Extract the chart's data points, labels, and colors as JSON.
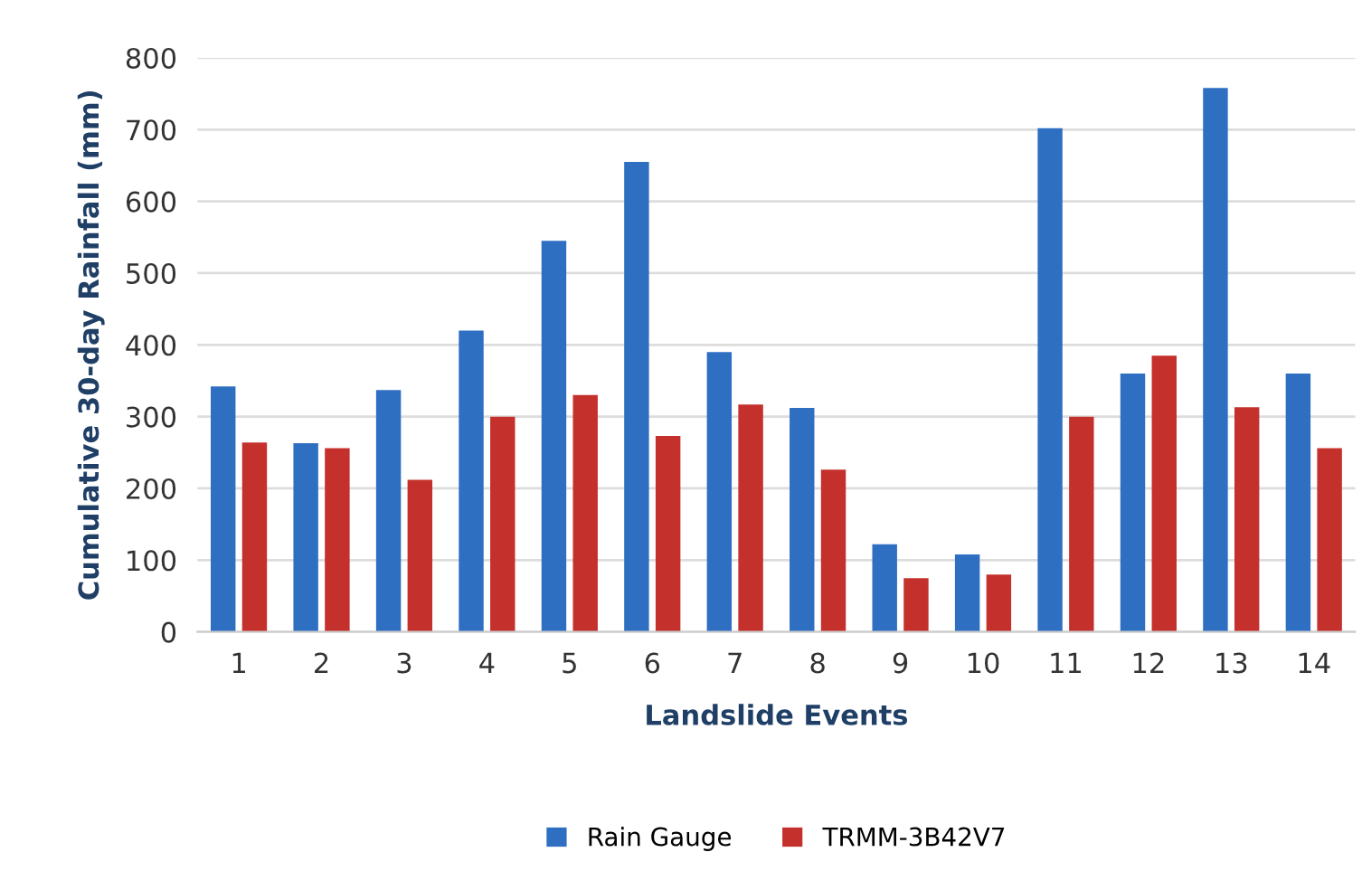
{
  "chart_data": {
    "type": "bar",
    "xlabel": "Landslide Events",
    "ylabel": "Cumulative 30-day Rainfall (mm)",
    "categories": [
      "1",
      "2",
      "3",
      "4",
      "5",
      "6",
      "7",
      "8",
      "9",
      "10",
      "11",
      "12",
      "13",
      "14"
    ],
    "series": [
      {
        "name": "Rain Gauge",
        "color": "#2f6fc2",
        "values": [
          342,
          263,
          337,
          420,
          545,
          655,
          390,
          312,
          122,
          108,
          702,
          360,
          758,
          360
        ]
      },
      {
        "name": "TRMM-3B42V7",
        "color": "#c4302c",
        "values": [
          264,
          256,
          212,
          300,
          330,
          273,
          317,
          226,
          75,
          80,
          300,
          385,
          313,
          256
        ]
      }
    ],
    "ylim": [
      0,
      800
    ],
    "yticks": [
      0,
      100,
      200,
      300,
      400,
      500,
      600,
      700,
      800
    ],
    "grid": "y",
    "legend": "bottom"
  }
}
